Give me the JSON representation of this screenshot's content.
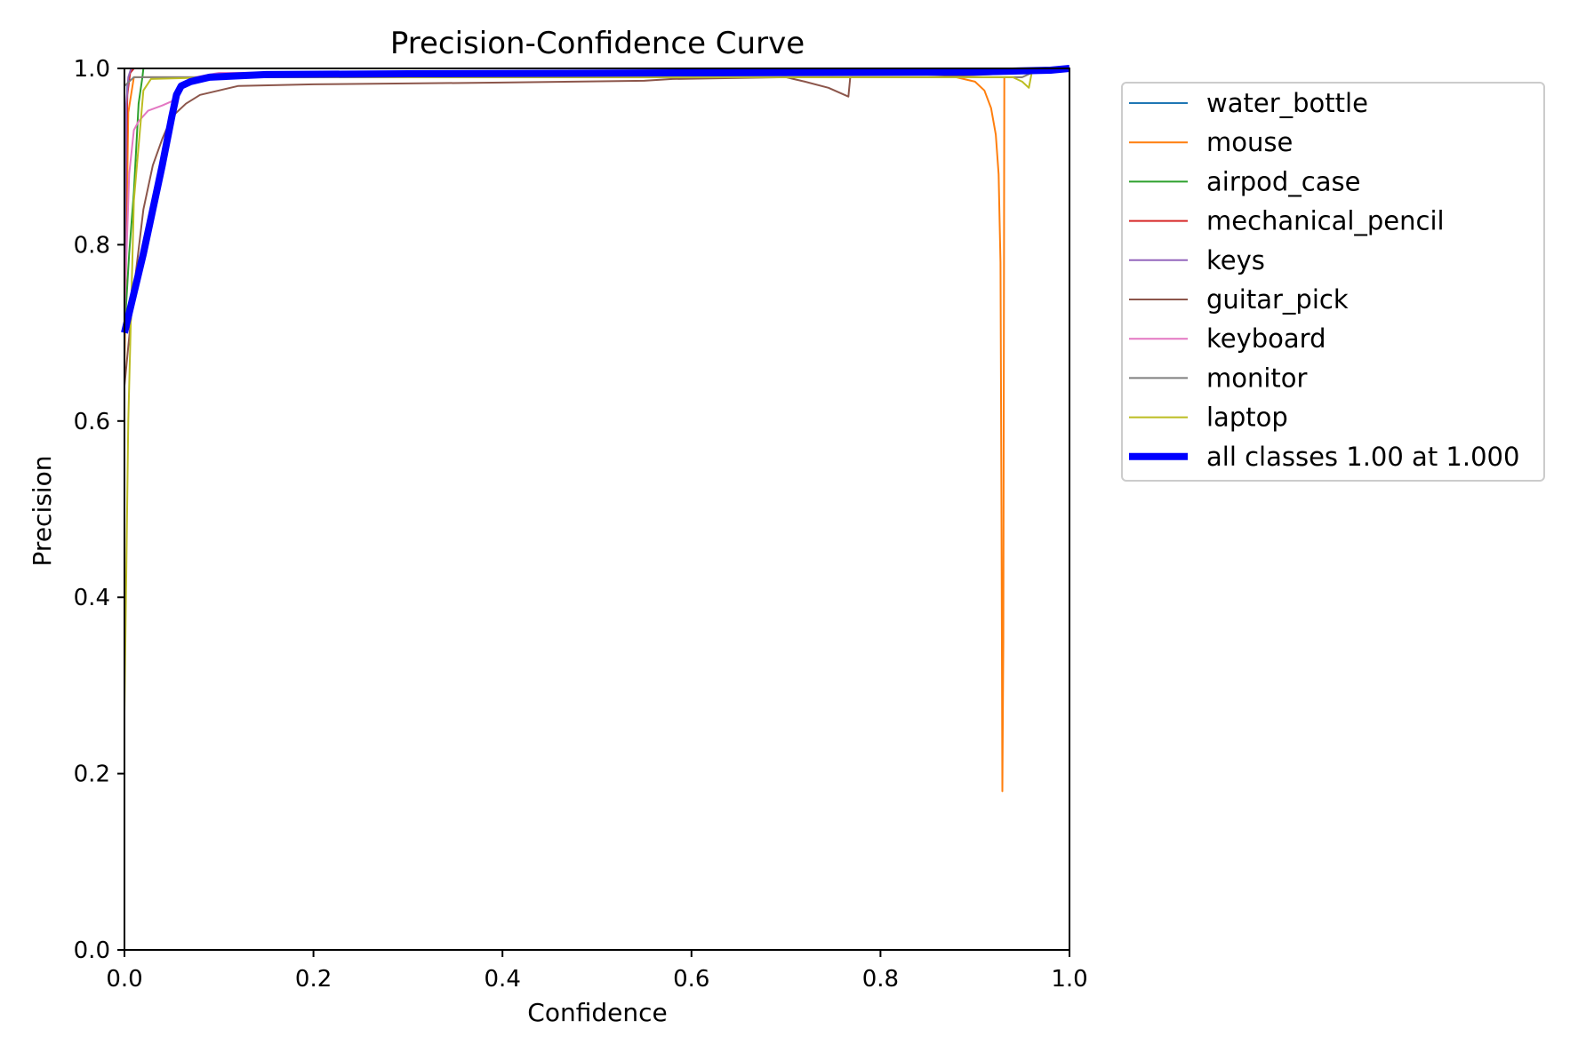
{
  "chart_data": {
    "type": "line",
    "title": "Precision-Confidence Curve",
    "xlabel": "Confidence",
    "ylabel": "Precision",
    "xlim": [
      0.0,
      1.0
    ],
    "ylim": [
      0.0,
      1.0
    ],
    "xticks": [
      "0.0",
      "0.2",
      "0.4",
      "0.6",
      "0.8",
      "1.0"
    ],
    "yticks": [
      "0.0",
      "0.2",
      "0.4",
      "0.6",
      "0.8",
      "1.0"
    ],
    "grid": false,
    "legend_position": "upper-right-outside",
    "series": [
      {
        "name": "water_bottle",
        "color": "#1f77b4",
        "width": 2,
        "points": [
          [
            0.0,
            0.7
          ],
          [
            0.003,
            0.98
          ],
          [
            0.006,
            0.995
          ],
          [
            0.01,
            1.0
          ],
          [
            1.0,
            1.0
          ]
        ]
      },
      {
        "name": "mouse",
        "color": "#ff7f0e",
        "width": 2,
        "points": [
          [
            0.0,
            0.66
          ],
          [
            0.004,
            0.95
          ],
          [
            0.01,
            0.99
          ],
          [
            0.5,
            0.99
          ],
          [
            0.85,
            0.99
          ],
          [
            0.88,
            0.99
          ],
          [
            0.9,
            0.985
          ],
          [
            0.91,
            0.975
          ],
          [
            0.917,
            0.955
          ],
          [
            0.922,
            0.925
          ],
          [
            0.925,
            0.88
          ],
          [
            0.927,
            0.78
          ],
          [
            0.928,
            0.5
          ],
          [
            0.929,
            0.18
          ],
          [
            0.93,
            0.35
          ],
          [
            0.931,
            0.99
          ],
          [
            0.95,
            0.99
          ],
          [
            0.96,
            0.995
          ],
          [
            1.0,
            1.0
          ]
        ]
      },
      {
        "name": "airpod_case",
        "color": "#2ca02c",
        "width": 2,
        "points": [
          [
            0.0,
            0.7
          ],
          [
            0.005,
            0.79
          ],
          [
            0.01,
            0.86
          ],
          [
            0.015,
            0.96
          ],
          [
            0.019,
            0.99
          ],
          [
            0.02,
            1.0
          ],
          [
            1.0,
            1.0
          ]
        ]
      },
      {
        "name": "mechanical_pencil",
        "color": "#d62728",
        "width": 2,
        "points": [
          [
            0.0,
            0.72
          ],
          [
            0.003,
            0.97
          ],
          [
            0.006,
            0.995
          ],
          [
            0.01,
            1.0
          ],
          [
            1.0,
            1.0
          ]
        ]
      },
      {
        "name": "keys",
        "color": "#9467bd",
        "width": 2,
        "points": [
          [
            0.0,
            0.72
          ],
          [
            0.002,
            0.96
          ],
          [
            0.004,
            0.99
          ],
          [
            0.007,
            1.0
          ],
          [
            1.0,
            1.0
          ]
        ]
      },
      {
        "name": "guitar_pick",
        "color": "#8c564b",
        "width": 2,
        "points": [
          [
            0.0,
            0.64
          ],
          [
            0.01,
            0.75
          ],
          [
            0.02,
            0.84
          ],
          [
            0.03,
            0.89
          ],
          [
            0.04,
            0.92
          ],
          [
            0.05,
            0.945
          ],
          [
            0.065,
            0.96
          ],
          [
            0.08,
            0.97
          ],
          [
            0.1,
            0.975
          ],
          [
            0.12,
            0.98
          ],
          [
            0.2,
            0.982
          ],
          [
            0.4,
            0.984
          ],
          [
            0.55,
            0.986
          ],
          [
            0.58,
            0.988
          ],
          [
            0.7,
            0.99
          ],
          [
            0.72,
            0.985
          ],
          [
            0.745,
            0.978
          ],
          [
            0.766,
            0.968
          ],
          [
            0.768,
            0.99
          ],
          [
            0.85,
            0.99
          ],
          [
            0.95,
            0.995
          ],
          [
            1.0,
            1.0
          ]
        ]
      },
      {
        "name": "keyboard",
        "color": "#e377c2",
        "width": 2,
        "points": [
          [
            0.0,
            0.72
          ],
          [
            0.005,
            0.88
          ],
          [
            0.01,
            0.93
          ],
          [
            0.015,
            0.94
          ],
          [
            0.025,
            0.952
          ],
          [
            0.04,
            0.958
          ],
          [
            0.055,
            0.965
          ],
          [
            0.065,
            0.985
          ],
          [
            0.075,
            0.99
          ],
          [
            0.1,
            0.995
          ],
          [
            1.0,
            1.0
          ]
        ]
      },
      {
        "name": "monitor",
        "color": "#7f7f7f",
        "width": 2,
        "points": [
          [
            0.0,
            0.98
          ],
          [
            0.01,
            0.99
          ],
          [
            0.3,
            0.99
          ],
          [
            0.6,
            0.99
          ],
          [
            0.95,
            0.99
          ],
          [
            0.96,
            0.995
          ],
          [
            1.0,
            1.0
          ]
        ]
      },
      {
        "name": "laptop",
        "color": "#bcbd22",
        "width": 2,
        "points": [
          [
            0.0,
            0.27
          ],
          [
            0.004,
            0.6
          ],
          [
            0.01,
            0.85
          ],
          [
            0.02,
            0.975
          ],
          [
            0.028,
            0.988
          ],
          [
            0.1,
            0.99
          ],
          [
            0.5,
            0.99
          ],
          [
            0.9,
            0.99
          ],
          [
            0.94,
            0.99
          ],
          [
            0.95,
            0.985
          ],
          [
            0.957,
            0.978
          ],
          [
            0.96,
            0.995
          ],
          [
            1.0,
            1.0
          ]
        ]
      },
      {
        "name": "all classes 1.00 at 1.000",
        "color": "#0000ff",
        "width": 8,
        "points": [
          [
            0.0,
            0.7
          ],
          [
            0.01,
            0.745
          ],
          [
            0.02,
            0.79
          ],
          [
            0.03,
            0.84
          ],
          [
            0.04,
            0.89
          ],
          [
            0.05,
            0.945
          ],
          [
            0.055,
            0.97
          ],
          [
            0.06,
            0.98
          ],
          [
            0.07,
            0.985
          ],
          [
            0.09,
            0.99
          ],
          [
            0.15,
            0.993
          ],
          [
            0.3,
            0.994
          ],
          [
            0.6,
            0.995
          ],
          [
            0.9,
            0.996
          ],
          [
            0.98,
            0.998
          ],
          [
            1.0,
            1.0
          ]
        ]
      }
    ]
  }
}
